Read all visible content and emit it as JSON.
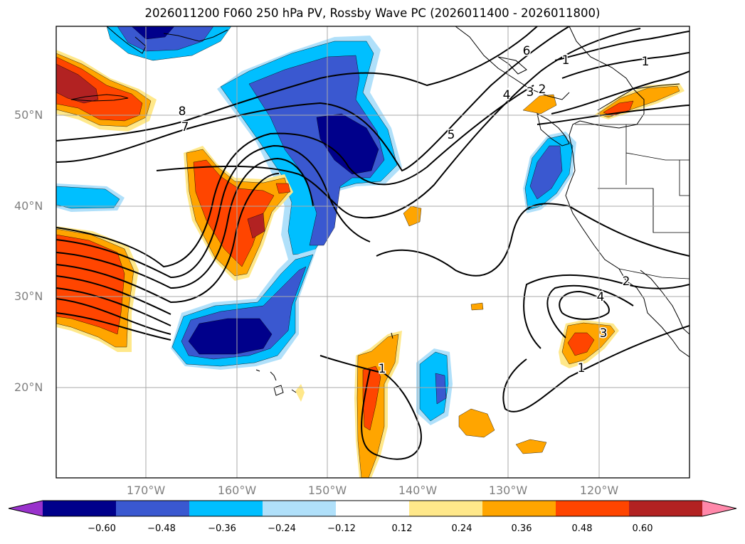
{
  "title": "2026011200 F060 250 hPa PV, Rossby Wave PC (2026011400 - 2026011800)",
  "lat_labels": [
    "50°N",
    "40°N",
    "30°N",
    "20°N"
  ],
  "lon_labels": [
    "170°W",
    "160°W",
    "150°W",
    "140°W",
    "130°W",
    "120°W"
  ],
  "contour_labels": [
    "8",
    "7",
    "6",
    "5",
    "4",
    "3",
    "2",
    "1",
    "1",
    "1",
    "1",
    "2",
    "3",
    "4"
  ],
  "colorbar": {
    "ticks": [
      "−0.60",
      "−0.48",
      "−0.36",
      "−0.24",
      "−0.12",
      "0.12",
      "0.24",
      "0.36",
      "0.48",
      "0.60"
    ],
    "colors": [
      "#9932cc",
      "#00008b",
      "#3a58d0",
      "#00bfff",
      "#b0e0fa",
      "#ffffff",
      "#ffe88a",
      "#ffa500",
      "#ff4500",
      "#b22222",
      "#ff88aa"
    ]
  },
  "palette": {
    "neg_deep": "#00008b",
    "neg_mid": "#3a58d0",
    "neg_light": "#00bfff",
    "neg_pale": "#b0e0fa",
    "pos_pale": "#ffe88a",
    "pos_light": "#ffa500",
    "pos_mid": "#ff4500",
    "pos_deep": "#b22222"
  }
}
